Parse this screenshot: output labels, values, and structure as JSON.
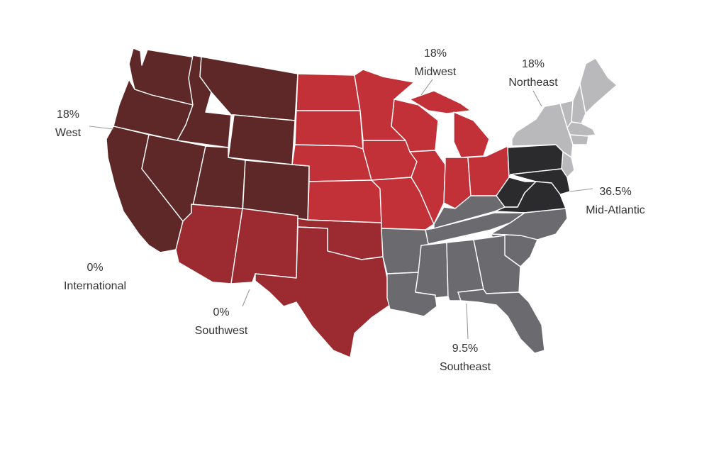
{
  "regions": [
    {
      "id": "west",
      "name": "West",
      "percent": "18%",
      "color": "#5e2828"
    },
    {
      "id": "midwest",
      "name": "Midwest",
      "percent": "18%",
      "color": "#c23038"
    },
    {
      "id": "northeast",
      "name": "Northeast",
      "percent": "18%",
      "color": "#b9b9bc"
    },
    {
      "id": "mid-atlantic",
      "name": "Mid-Atlantic",
      "percent": "36.5%",
      "color": "#2b2b2d"
    },
    {
      "id": "southeast",
      "name": "Southeast",
      "percent": "9.5%",
      "color": "#6a6a6f"
    },
    {
      "id": "southwest",
      "name": "Southwest",
      "percent": "0%",
      "color": "#9b2b30"
    },
    {
      "id": "international",
      "name": "International",
      "percent": "0%"
    }
  ]
}
